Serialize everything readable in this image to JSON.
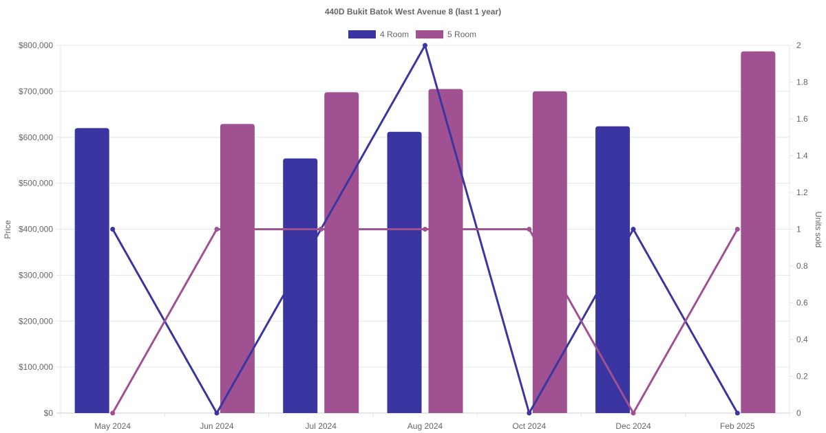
{
  "chart_data": {
    "type": "bar",
    "title": "440D Bukit Batok West Avenue 8 (last 1 year)",
    "categories": [
      "May 2024",
      "Jun 2024",
      "Jul 2024",
      "Aug 2024",
      "Oct 2024",
      "Dec 2024",
      "Feb 2025"
    ],
    "ylabel": "Price",
    "y2label": "Units sold",
    "ylim": [
      0,
      800000
    ],
    "y2lim": [
      0,
      2
    ],
    "yticks": [
      "$0",
      "$100,000",
      "$200,000",
      "$300,000",
      "$400,000",
      "$500,000",
      "$600,000",
      "$700,000",
      "$800,000"
    ],
    "y2ticks": [
      "0",
      "0.2",
      "0.4",
      "0.6",
      "0.8",
      "1",
      "1.2",
      "1.4",
      "1.6",
      "1.8",
      "2"
    ],
    "legend_position": "top",
    "grid": true,
    "series": [
      {
        "name": "4 Room",
        "color": "#3a35a0",
        "type": "bar",
        "axis": "price",
        "values": [
          620000,
          null,
          554000,
          612000,
          null,
          624000,
          null
        ]
      },
      {
        "name": "5 Room",
        "color": "#a05192",
        "type": "bar",
        "axis": "price",
        "values": [
          null,
          629000,
          698000,
          705000,
          700000,
          null,
          787000
        ]
      },
      {
        "name": "4 Room units",
        "color": "#3a35a0",
        "type": "line",
        "axis": "units",
        "values": [
          1,
          0,
          1,
          2,
          0,
          1,
          0
        ]
      },
      {
        "name": "5 Room units",
        "color": "#a05192",
        "type": "line",
        "axis": "units",
        "values": [
          0,
          1,
          1,
          1,
          1,
          0,
          1
        ]
      }
    ]
  }
}
